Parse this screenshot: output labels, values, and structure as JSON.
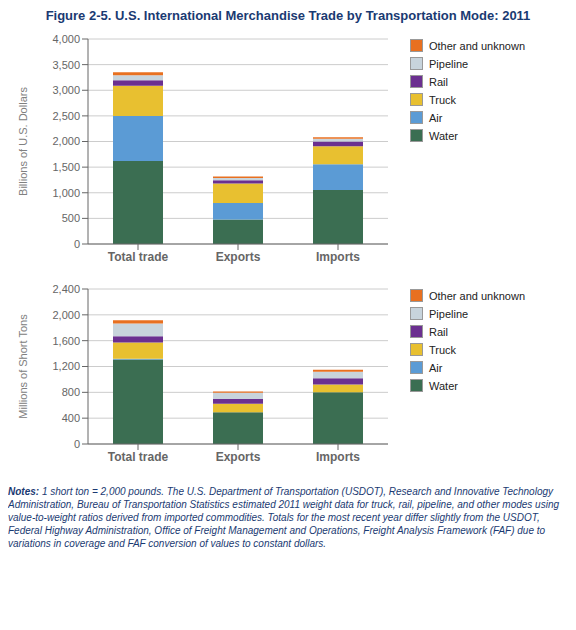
{
  "chart_data": [
    {
      "type": "bar",
      "stacked": true,
      "grid": true,
      "legend": "right",
      "title": "Figure 2-5. U.S. International Merchandise Trade by Transportation Mode: 2011",
      "y_label": "Billions of U.S. Dollars",
      "categories": [
        "Total trade",
        "Exports",
        "Imports"
      ],
      "ylim": [
        0,
        4000
      ],
      "yticks": [
        0,
        500,
        {
          "value": 1000,
          "label": "1,000"
        },
        {
          "value": 1500,
          "label": "1,500"
        },
        {
          "value": 2000,
          "label": "2,000"
        },
        {
          "value": 2500,
          "label": "2,500"
        },
        {
          "value": 3000,
          "label": "3,000"
        },
        {
          "value": 3500,
          "label": "3,500"
        },
        {
          "value": 4000,
          "label": "4,000"
        }
      ],
      "series": [
        {
          "name": "Water",
          "color": "#3B6E52",
          "values": [
            1620,
            480,
            1055
          ]
        },
        {
          "name": "Air",
          "color": "#5B9BD5",
          "values": [
            880,
            320,
            500
          ]
        },
        {
          "name": "Truck",
          "color": "#E8C030",
          "values": [
            590,
            380,
            350
          ]
        },
        {
          "name": "Rail",
          "color": "#6B3090",
          "values": [
            105,
            62,
            95
          ]
        },
        {
          "name": "Pipeline",
          "color": "#C8D4DC",
          "values": [
            100,
            48,
            52
          ]
        },
        {
          "name": "Other and unknown",
          "color": "#E87020",
          "values": [
            55,
            25,
            30
          ]
        }
      ]
    },
    {
      "type": "bar",
      "stacked": true,
      "grid": true,
      "legend": "right",
      "y_label": "Millions of Short Tons",
      "categories": [
        "Total trade",
        "Exports",
        "Imports"
      ],
      "ylim": [
        0,
        2400
      ],
      "yticks": [
        0,
        400,
        800,
        {
          "value": 1200,
          "label": "1,200"
        },
        {
          "value": 1600,
          "label": "1,600"
        },
        {
          "value": 2000,
          "label": "2,000"
        },
        {
          "value": 2400,
          "label": "2,400"
        }
      ],
      "series": [
        {
          "name": "Water",
          "color": "#3B6E52",
          "values": [
            1310,
            490,
            800
          ]
        },
        {
          "name": "Air",
          "color": "#5B9BD5",
          "values": [
            10,
            3,
            3
          ]
        },
        {
          "name": "Truck",
          "color": "#E8C030",
          "values": [
            250,
            130,
            120
          ]
        },
        {
          "name": "Rail",
          "color": "#6B3090",
          "values": [
            100,
            72,
            95
          ]
        },
        {
          "name": "Pipeline",
          "color": "#C8D4DC",
          "values": [
            195,
            98,
            100
          ]
        },
        {
          "name": "Other and unknown",
          "color": "#E87020",
          "values": [
            50,
            20,
            30
          ]
        }
      ],
      "annotations": [
        "Notes:",
        "1 short ton = 2,000 pounds. The U.S. Department of Transportation (USDOT), Research and Innovative Technology Administration, Bureau of Transportation Statistics estimated 2011 weight data for truck, rail, pipeline, and other modes using value-to-weight ratios derived from imported commodities. Totals for the most recent year differ slightly from the USDOT, Federal Highway Administration, Office of Freight Management and Operations, Freight Analysis Framework (FAF) due to variations in coverage and FAF conversion of values to constant dollars."
      ]
    }
  ]
}
